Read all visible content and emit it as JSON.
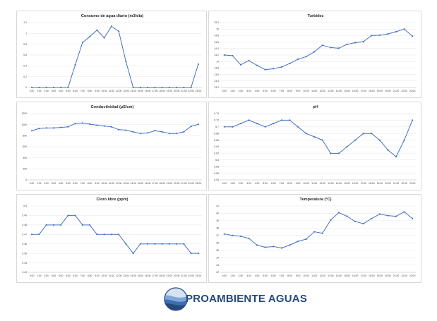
{
  "brand": {
    "logo_text": "PROAMBIENTE AGUAS",
    "colors": {
      "dark_blue": "#24497a",
      "mid_blue": "#3c6fb0",
      "light_blue": "#7fa6d8"
    }
  },
  "colors": {
    "series": "#4472c4"
  },
  "time_labels_a": [
    "0:00",
    "1:00",
    "2:00",
    "3:00",
    "4:00",
    "5:00",
    "6:00",
    "7:00",
    "8:00",
    "9:00",
    "10:00",
    "11:00",
    "12:00",
    "13:00",
    "14:00",
    "15:00",
    "16:00",
    "17:00",
    "18:00",
    "19:00",
    "20:00",
    "21:00",
    "22:00",
    "23:00"
  ],
  "time_labels_b": [
    "0:00",
    "1:00",
    "2:00",
    "3:00",
    "4:00",
    "5:00",
    "6:00",
    "7:00",
    "8:00",
    "9:00",
    "10:00",
    "11:00",
    "12:00",
    "13:00",
    "14:00",
    "15:00",
    "16:00",
    "17:00",
    "18:00",
    "19:00",
    "20:00",
    "21:00",
    "22:00",
    "23:00"
  ],
  "chart_data": [
    {
      "type": "line",
      "title": "Consumo de agua diario (m3/día)",
      "categories_key": "time_labels_a",
      "values": [
        0,
        0,
        0,
        0,
        0,
        0,
        0.42,
        0.83,
        0.94,
        1.06,
        0.92,
        1.13,
        1.04,
        0.48,
        0,
        0,
        0,
        0,
        0,
        0,
        0,
        0,
        0,
        0.43
      ],
      "ylim": [
        0,
        1.2
      ],
      "yticks": [
        "0",
        "0.2",
        "0.4",
        "0.6",
        "0.8",
        "1",
        "1.2"
      ],
      "grid": true
    },
    {
      "type": "line",
      "title": "Turbidez",
      "categories_key": "time_labels_b",
      "values": [
        14.2,
        14.18,
        13.9,
        14.03,
        13.88,
        13.75,
        13.78,
        13.83,
        13.94,
        14.07,
        14.15,
        14.3,
        14.5,
        14.43,
        14.41,
        14.53,
        14.58,
        14.61,
        14.8,
        14.81,
        14.85,
        14.92,
        15.0,
        14.78
      ],
      "ylim": [
        13.2,
        15.2
      ],
      "yticks": [
        "13.2",
        "13.4",
        "13.6",
        "13.8",
        "14",
        "14.2",
        "14.4",
        "14.6",
        "14.8",
        "15",
        "15.2"
      ],
      "grid": true
    },
    {
      "type": "line",
      "title": "Conductividad (µS/cm)",
      "categories_key": "time_labels_b",
      "values": [
        890,
        930,
        940,
        940,
        950,
        960,
        1020,
        1030,
        1010,
        990,
        975,
        960,
        910,
        900,
        870,
        840,
        850,
        890,
        870,
        840,
        840,
        870,
        970,
        1005
      ],
      "ylim": [
        0,
        1200
      ],
      "yticks": [
        "0",
        "200",
        "400",
        "600",
        "800",
        "1000",
        "1200"
      ],
      "grid": true
    },
    {
      "type": "line",
      "title": "pH",
      "categories_key": "time_labels_b",
      "values": [
        6.7,
        6.7,
        6.71,
        6.72,
        6.71,
        6.7,
        6.71,
        6.72,
        6.72,
        6.7,
        6.68,
        6.67,
        6.66,
        6.62,
        6.62,
        6.64,
        6.66,
        6.68,
        6.68,
        6.66,
        6.63,
        6.61,
        6.66,
        6.72
      ],
      "ylim": [
        6.54,
        6.74
      ],
      "yticks": [
        "6.54",
        "6.56",
        "6.58",
        "6.6",
        "6.62",
        "6.64",
        "6.66",
        "6.68",
        "6.7",
        "6.72",
        "6.74"
      ],
      "grid": true
    },
    {
      "type": "line",
      "title": "Cloro libre (ppm)",
      "categories_key": "time_labels_a",
      "values": [
        0.47,
        0.47,
        0.48,
        0.48,
        0.48,
        0.49,
        0.49,
        0.48,
        0.48,
        0.47,
        0.47,
        0.47,
        0.47,
        0.46,
        0.45,
        0.46,
        0.46,
        0.46,
        0.46,
        0.46,
        0.46,
        0.46,
        0.45,
        0.45
      ],
      "ylim": [
        0.43,
        0.5
      ],
      "yticks": [
        "0.43",
        "0.44",
        "0.45",
        "0.46",
        "0.47",
        "0.48",
        "0.49",
        "0.5"
      ],
      "grid": true
    },
    {
      "type": "line",
      "title": "Temperatura (°C)",
      "categories_key": "time_labels_b",
      "values": [
        37.2,
        37.0,
        36.9,
        36.6,
        35.7,
        35.4,
        35.5,
        35.3,
        35.7,
        36.2,
        36.5,
        37.5,
        37.3,
        39.1,
        40.1,
        39.6,
        38.9,
        38.6,
        39.3,
        39.9,
        39.7,
        39.6,
        40.2,
        39.3
      ],
      "ylim": [
        32,
        41
      ],
      "yticks": [
        "32",
        "33",
        "34",
        "35",
        "36",
        "37",
        "38",
        "39",
        "40",
        "41"
      ],
      "grid": true
    }
  ]
}
